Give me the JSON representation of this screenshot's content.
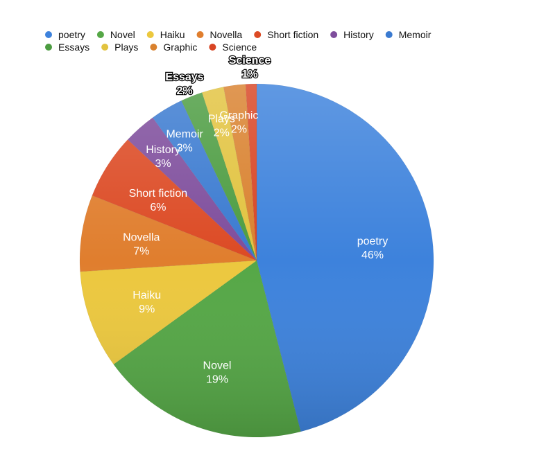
{
  "chart_data": {
    "type": "pie",
    "title": "",
    "legend_position": "top-left",
    "slices": [
      {
        "label": "poetry",
        "value": 46,
        "value_label": "46%",
        "color": "#3d82dc"
      },
      {
        "label": "Novel",
        "value": 19,
        "value_label": "19%",
        "color": "#55a746"
      },
      {
        "label": "Haiku",
        "value": 9,
        "value_label": "9%",
        "color": "#ecc83e"
      },
      {
        "label": "Novella",
        "value": 7,
        "value_label": "7%",
        "color": "#e07e2e"
      },
      {
        "label": "Short fiction",
        "value": 6,
        "value_label": "6%",
        "color": "#dc4a24"
      },
      {
        "label": "History",
        "value": 3,
        "value_label": "3%",
        "color": "#7e4d9c"
      },
      {
        "label": "Memoir",
        "value": 3,
        "value_label": "3%",
        "color": "#3a7ad0"
      },
      {
        "label": "Essays",
        "value": 2,
        "value_label": "2%",
        "color": "#4c9c41"
      },
      {
        "label": "Plays",
        "value": 2,
        "value_label": "2%",
        "color": "#e2c33f"
      },
      {
        "label": "Graphic",
        "value": 2,
        "value_label": "2%",
        "color": "#d9812e"
      },
      {
        "label": "Science",
        "value": 1,
        "value_label": "1%",
        "color": "#d84423"
      }
    ]
  }
}
